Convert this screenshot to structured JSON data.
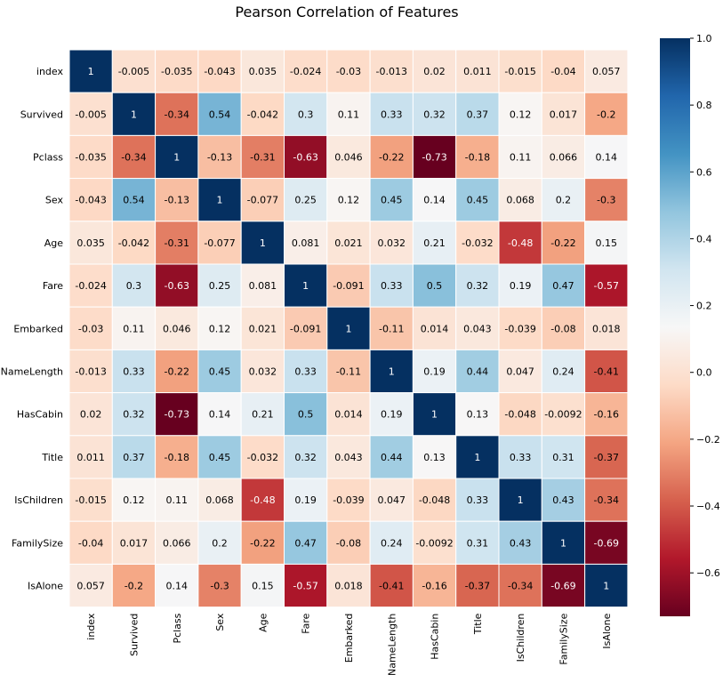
{
  "chart_data": {
    "type": "heatmap",
    "title": "Pearson Correlation of Features",
    "xlabel": "",
    "ylabel": "",
    "labels": [
      "index",
      "Survived",
      "Pclass",
      "Sex",
      "Age",
      "Fare",
      "Embarked",
      "NameLength",
      "HasCabin",
      "Title",
      "IsChildren",
      "FamilySize",
      "IsAlone"
    ],
    "matrix": [
      [
        "1",
        "-0.005",
        "-0.035",
        "-0.043",
        "0.035",
        "-0.024",
        "-0.03",
        "-0.013",
        "0.02",
        "0.011",
        "-0.015",
        "-0.04",
        "0.057"
      ],
      [
        "-0.005",
        "1",
        "-0.34",
        "0.54",
        "-0.042",
        "0.3",
        "0.11",
        "0.33",
        "0.32",
        "0.37",
        "0.12",
        "0.017",
        "-0.2"
      ],
      [
        "-0.035",
        "-0.34",
        "1",
        "-0.13",
        "-0.31",
        "-0.63",
        "0.046",
        "-0.22",
        "-0.73",
        "-0.18",
        "0.11",
        "0.066",
        "0.14"
      ],
      [
        "-0.043",
        "0.54",
        "-0.13",
        "1",
        "-0.077",
        "0.25",
        "0.12",
        "0.45",
        "0.14",
        "0.45",
        "0.068",
        "0.2",
        "-0.3"
      ],
      [
        "0.035",
        "-0.042",
        "-0.31",
        "-0.077",
        "1",
        "0.081",
        "0.021",
        "0.032",
        "0.21",
        "-0.032",
        "-0.48",
        "-0.22",
        "0.15"
      ],
      [
        "-0.024",
        "0.3",
        "-0.63",
        "0.25",
        "0.081",
        "1",
        "-0.091",
        "0.33",
        "0.5",
        "0.32",
        "0.19",
        "0.47",
        "-0.57"
      ],
      [
        "-0.03",
        "0.11",
        "0.046",
        "0.12",
        "0.021",
        "-0.091",
        "1",
        "-0.11",
        "0.014",
        "0.043",
        "-0.039",
        "-0.08",
        "0.018"
      ],
      [
        "-0.013",
        "0.33",
        "-0.22",
        "0.45",
        "0.032",
        "0.33",
        "-0.11",
        "1",
        "0.19",
        "0.44",
        "0.047",
        "0.24",
        "-0.41"
      ],
      [
        "0.02",
        "0.32",
        "-0.73",
        "0.14",
        "0.21",
        "0.5",
        "0.014",
        "0.19",
        "1",
        "0.13",
        "-0.048",
        "-0.0092",
        "-0.16"
      ],
      [
        "0.011",
        "0.37",
        "-0.18",
        "0.45",
        "-0.032",
        "0.32",
        "0.043",
        "0.44",
        "0.13",
        "1",
        "0.33",
        "0.31",
        "-0.37"
      ],
      [
        "-0.015",
        "0.12",
        "0.11",
        "0.068",
        "-0.48",
        "0.19",
        "-0.039",
        "0.047",
        "-0.048",
        "0.33",
        "1",
        "0.43",
        "-0.34"
      ],
      [
        "-0.04",
        "0.017",
        "0.066",
        "0.2",
        "-0.22",
        "0.47",
        "-0.08",
        "0.24",
        "-0.0092",
        "0.31",
        "0.43",
        "1",
        "-0.69"
      ],
      [
        "0.057",
        "-0.2",
        "0.14",
        "-0.3",
        "0.15",
        "-0.57",
        "0.018",
        "-0.41",
        "-0.16",
        "-0.37",
        "-0.34",
        "-0.69",
        "1"
      ]
    ],
    "colorbar": {
      "colormap": "RdBu",
      "vmin": -0.73,
      "vmax": 1.0,
      "ticks": [
        "1.0",
        "0.8",
        "0.6",
        "0.4",
        "0.2",
        "0.0",
        "−0.2",
        "−0.4",
        "−0.6"
      ]
    },
    "colors": {
      "dark_red": "#67001f",
      "red": "#b2182b",
      "salmon": "#d6604d",
      "light_salmon": "#f4a582",
      "peach": "#fddbc7",
      "white": "#f7f7f7",
      "pale_blue": "#d1e5f0",
      "light_blue": "#92c5de",
      "blue": "#4393c3",
      "mid_blue": "#2166ac",
      "dark_blue": "#053061",
      "grid_line": "#ffffff"
    }
  }
}
